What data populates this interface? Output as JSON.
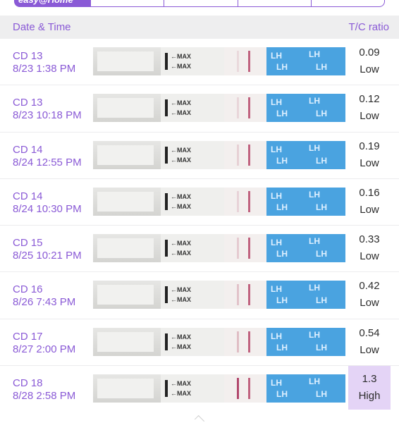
{
  "brand": {
    "name": "easy@Home"
  },
  "header": {
    "left": "Date & Time",
    "right": "T/C ratio"
  },
  "rows": [
    {
      "cd": "CD 13",
      "datetime": "8/23 1:38 PM",
      "ratio": "0.09",
      "level": "Low",
      "t_intensity": 0.15
    },
    {
      "cd": "CD 13",
      "datetime": "8/23 10:18 PM",
      "ratio": "0.12",
      "level": "Low",
      "t_intensity": 0.2
    },
    {
      "cd": "CD 14",
      "datetime": "8/24 12:55 PM",
      "ratio": "0.19",
      "level": "Low",
      "t_intensity": 0.3
    },
    {
      "cd": "CD 14",
      "datetime": "8/24 10:30 PM",
      "ratio": "0.16",
      "level": "Low",
      "t_intensity": 0.25
    },
    {
      "cd": "CD 15",
      "datetime": "8/25 10:21 PM",
      "ratio": "0.33",
      "level": "Low",
      "t_intensity": 0.4
    },
    {
      "cd": "CD 16",
      "datetime": "8/26 7:43 PM",
      "ratio": "0.42",
      "level": "Low",
      "t_intensity": 0.55
    },
    {
      "cd": "CD 17",
      "datetime": "8/27 2:00 PM",
      "ratio": "0.54",
      "level": "Low",
      "t_intensity": 0.65
    },
    {
      "cd": "CD 18",
      "datetime": "8/28 2:58 PM",
      "ratio": "1.3",
      "level": "High",
      "t_intensity": 1.0
    }
  ],
  "strip_labels": {
    "max": "MAX",
    "lh": "LH"
  },
  "colors": {
    "accent": "#8a5ad6",
    "high_bg": "#e4d4f6",
    "strip_blue": "#4aa3e0"
  }
}
